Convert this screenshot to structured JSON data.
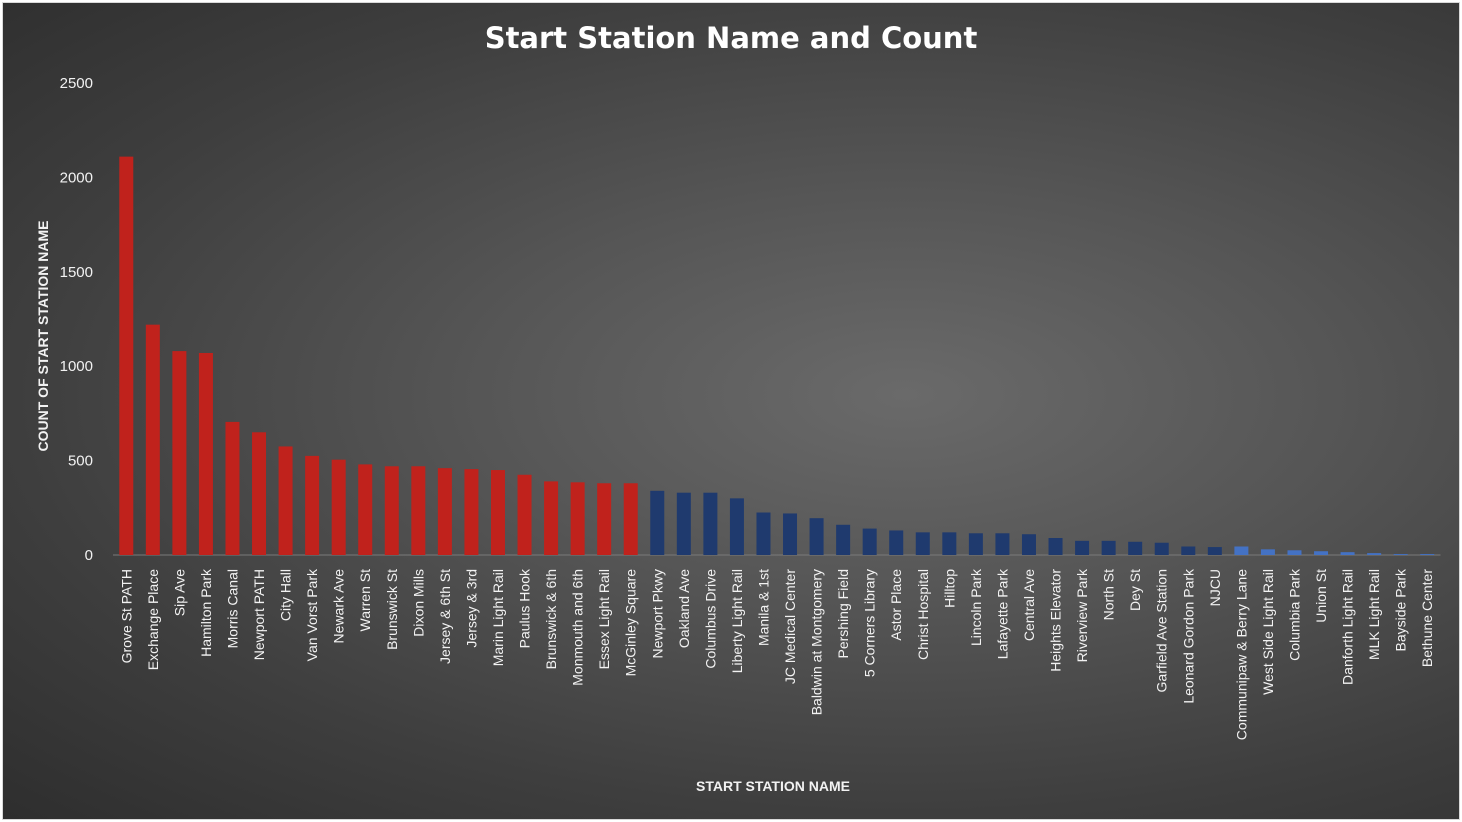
{
  "chart_data": {
    "type": "bar",
    "title": "Start Station Name and Count",
    "xlabel": "START STATION NAME",
    "ylabel": "COUNT OF START STATION NAME",
    "ylim": [
      0,
      2500
    ],
    "yticks": [
      0,
      500,
      1000,
      1500,
      2000,
      2500
    ],
    "grid": false,
    "legend": "none",
    "colors": {
      "top": "#c0221c",
      "mid": "#1f3a6e",
      "low": "#4472c4"
    },
    "categories": [
      "Grove St PATH",
      "Exchange Place",
      "Sip Ave",
      "Hamilton Park",
      "Morris Canal",
      "Newport PATH",
      "City Hall",
      "Van Vorst Park",
      "Newark Ave",
      "Warren St",
      "Brunswick St",
      "Dixon Mills",
      "Jersey & 6th St",
      "Jersey & 3rd",
      "Marin Light Rail",
      "Paulus Hook",
      "Brunswick & 6th",
      "Monmouth and 6th",
      "Essex Light Rail",
      "McGinley Square",
      "Newport Pkwy",
      "Oakland Ave",
      "Columbus Drive",
      "Liberty Light Rail",
      "Manila & 1st",
      "JC Medical Center",
      "Baldwin at Montgomery",
      "Pershing Field",
      "5 Corners Library",
      "Astor Place",
      "Christ Hospital",
      "Hilltop",
      "Lincoln Park",
      "Lafayette Park",
      "Central Ave",
      "Heights Elevator",
      "Riverview Park",
      "North St",
      "Dey St",
      "Garfield Ave Station",
      "Leonard Gordon Park",
      "NJCU",
      "Communipaw & Berry Lane",
      "West Side Light Rail",
      "Columbia Park",
      "Union St",
      "Danforth Light Rail",
      "MLK Light Rail",
      "Bayside Park",
      "Bethune Center"
    ],
    "values": [
      2110,
      1220,
      1080,
      1070,
      705,
      650,
      575,
      525,
      505,
      480,
      470,
      470,
      460,
      455,
      450,
      425,
      390,
      385,
      380,
      380,
      340,
      330,
      330,
      300,
      225,
      220,
      195,
      160,
      140,
      130,
      120,
      120,
      115,
      115,
      110,
      90,
      75,
      75,
      70,
      65,
      45,
      42,
      45,
      30,
      25,
      20,
      15,
      10,
      5,
      5
    ],
    "bar_color_groups": [
      "top",
      "top",
      "top",
      "top",
      "top",
      "top",
      "top",
      "top",
      "top",
      "top",
      "top",
      "top",
      "top",
      "top",
      "top",
      "top",
      "top",
      "top",
      "top",
      "top",
      "mid",
      "mid",
      "mid",
      "mid",
      "mid",
      "mid",
      "mid",
      "mid",
      "mid",
      "mid",
      "mid",
      "mid",
      "mid",
      "mid",
      "mid",
      "mid",
      "mid",
      "mid",
      "mid",
      "mid",
      "mid",
      "mid",
      "low",
      "low",
      "low",
      "low",
      "low",
      "low",
      "low",
      "low"
    ]
  }
}
